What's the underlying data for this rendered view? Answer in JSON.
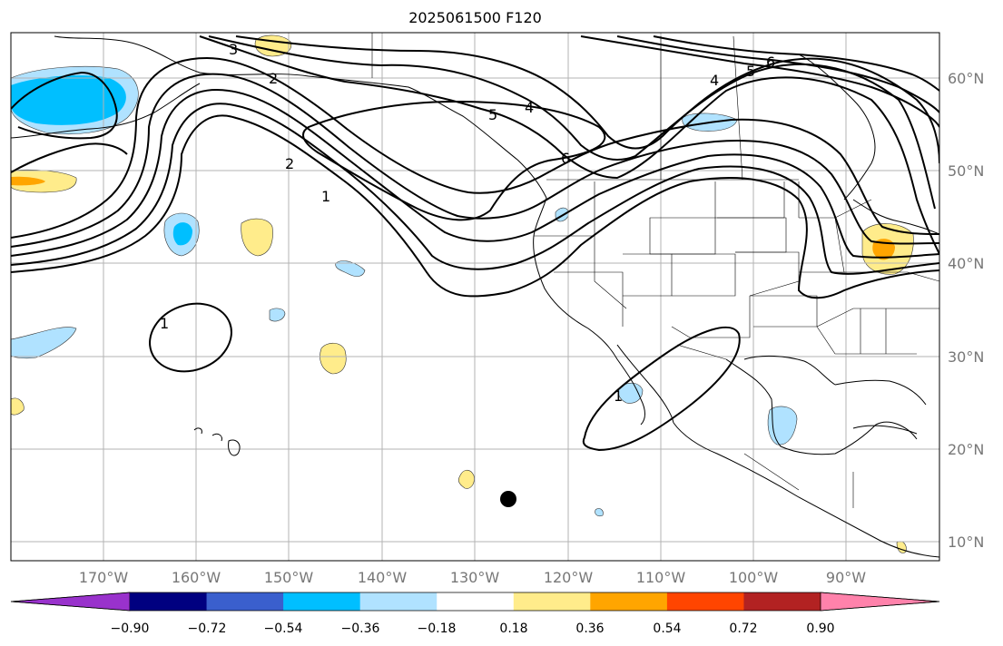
{
  "title": "2025061500 F120",
  "axes": {
    "longitude_labels": [
      "170°W",
      "160°W",
      "150°W",
      "140°W",
      "130°W",
      "120°W",
      "110°W",
      "100°W",
      "90°W"
    ],
    "latitude_labels": [
      "60°N",
      "50°N",
      "40°N",
      "30°N",
      "20°N",
      "10°N"
    ]
  },
  "colorbar": {
    "tick_labels": [
      "−0.90",
      "−0.72",
      "−0.54",
      "−0.36",
      "−0.18",
      "0.18",
      "0.36",
      "0.54",
      "0.72",
      "0.90"
    ],
    "colors": [
      "#9932CC",
      "#000080",
      "#3A5FCD",
      "#00BFFF",
      "#B0E2FF",
      "#FFFFFF",
      "#FFEC8B",
      "#FFA500",
      "#FF4500",
      "#B22222",
      "#FF82AB"
    ]
  },
  "contour_labels": [
    "3",
    "2",
    "5",
    "4",
    "6",
    "5",
    "4",
    "6",
    "1",
    "2",
    "1",
    "1"
  ],
  "marker": "filled-circle"
}
